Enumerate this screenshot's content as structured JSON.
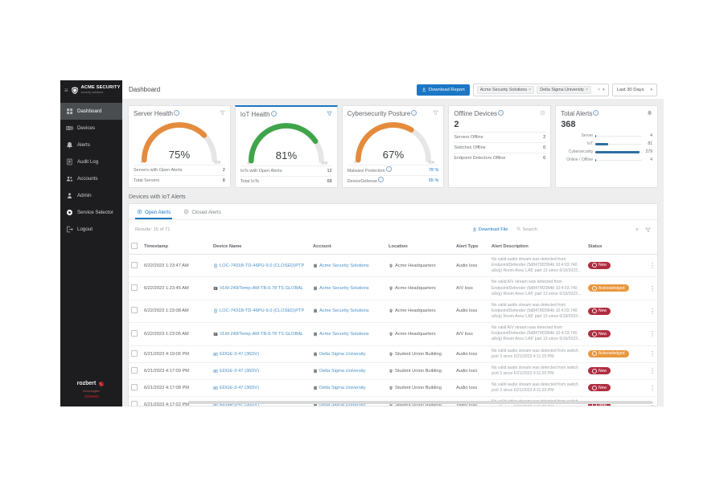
{
  "sidebar": {
    "logo": {
      "title": "ACME SECURITY",
      "subtitle": "security solutions"
    },
    "items": [
      {
        "label": "Dashboard",
        "icon": "dashboard",
        "active": true
      },
      {
        "label": "Devices",
        "icon": "devices",
        "active": false
      },
      {
        "label": "Alerts",
        "icon": "alerts",
        "active": false
      },
      {
        "label": "Audit Log",
        "icon": "audit-log",
        "active": false
      },
      {
        "label": "Accounts",
        "icon": "accounts",
        "active": false
      },
      {
        "label": "Admin",
        "icon": "admin",
        "active": false
      },
      {
        "label": "Service Selector",
        "icon": "service-selector",
        "active": false
      },
      {
        "label": "Logout",
        "icon": "logout",
        "active": false
      }
    ],
    "footer": {
      "brand": "rozbert",
      "sub": "technologies"
    }
  },
  "topbar": {
    "title": "Dashboard",
    "download_report_label": "Download Report",
    "account_filter": {
      "chips": [
        "Acme Security Solutions",
        "Delta Sigma University"
      ]
    },
    "date_range": "Last 30 Days"
  },
  "cards": {
    "server_health": {
      "title": "Server Health",
      "percent": 75,
      "min": "0",
      "max": "100",
      "color": "#e58b3c",
      "rows": [
        {
          "label": "Servers with Open Alerts",
          "value": "2"
        },
        {
          "label": "Total Servers",
          "value": "8"
        }
      ]
    },
    "iot_health": {
      "title": "IoT Health",
      "percent": 81,
      "min": "0",
      "max": "100",
      "color": "#3fa44a",
      "rows": [
        {
          "label": "IoTs with Open Alerts",
          "value": "12"
        },
        {
          "label": "Total IoTs",
          "value": "68"
        }
      ]
    },
    "cybersecurity_posture": {
      "title": "Cybersecurity Posture",
      "percent": 67,
      "min": "0",
      "max": "100",
      "color": "#e58b3c",
      "rows": [
        {
          "label": "Malware Protection",
          "value": "78 %",
          "link": true,
          "info": true
        },
        {
          "label": "DeviceDefense",
          "value": "65 %",
          "link": true,
          "info": true
        }
      ]
    },
    "offline_devices": {
      "title": "Offline Devices",
      "total": "2",
      "rows": [
        {
          "label": "Servers Offline",
          "value": "2"
        },
        {
          "label": "Switches Offline",
          "value": "0"
        },
        {
          "label": "Endpoint Detectors Offline",
          "value": "0"
        }
      ]
    },
    "total_alerts": {
      "title": "Total Alerts",
      "total": "368",
      "bar_color": "#2e6e9e",
      "scale_max": 279,
      "bars": [
        {
          "label": "Server",
          "value": 4
        },
        {
          "label": "IoT",
          "value": 81
        },
        {
          "label": "Cybersecurity",
          "value": 279
        },
        {
          "label": "Online / Offline",
          "value": 4
        }
      ]
    }
  },
  "section": {
    "title": "Devices with IoT Alerts"
  },
  "table": {
    "tabs": [
      {
        "label": "Open Alerts",
        "icon": "tab-open",
        "active": true
      },
      {
        "label": "Closed Alerts",
        "icon": "tab-closed",
        "active": false
      }
    ],
    "results": "Results: 15 of 71",
    "toolbar": {
      "download_label": "Download File",
      "search_label": "Search"
    },
    "columns": [
      "Timestamp",
      "Device Name",
      "Account",
      "Location",
      "Alert Type",
      "Alert Description",
      "Status"
    ],
    "status_colors": {
      "New": "#b02d40",
      "Acknowledged": "#e9973e"
    },
    "rows": [
      {
        "timestamp": "6/22/2023 1:23:47 AM",
        "device": "LOC-7431B-TD-46PU-9.0 (CLOSED)PTP",
        "device_icon": "camera",
        "account": "Acme Security Solutions",
        "location": "Acme Headquarters",
        "type": "Audio loss",
        "description": "No valid audio stream was detected from Endpoint/Defender (5d8479f2994b 10:4:03.740 a/b/g) Room Area 'LA5' part 13 since 6/19/2023 9:08:25 PM",
        "status": "New"
      },
      {
        "timestamp": "6/22/2023 1:23:45 AM",
        "device": "VLM-249/Temp-AM-TB-9.78 TS GLOBAL",
        "device_icon": "nvr",
        "account": "Acme Security Solutions",
        "location": "Acme Headquarters",
        "type": "A/V loss",
        "description": "No valid A/V stream was detected from Endpoint/Defender (5d8479f2994b 10:4:03.740 a/b/g) Room Area 'LA5' part 13 since 6/19/2023 9:08:25 PM",
        "status": "Acknowledged"
      },
      {
        "timestamp": "6/22/2023 1:23:08 AM",
        "device": "LOC-7431B-TD-46PU-9.0 (CLOSED)PTP",
        "device_icon": "camera",
        "account": "Acme Security Solutions",
        "location": "Acme Headquarters",
        "type": "Audio loss",
        "description": "No valid audio stream was detected from Endpoint/Defender (5d8479f2994b 10:4:03.740 a/b/g) Room Area 'LA5' part 13 since 6/19/2023 9:08:25 PM",
        "status": "New"
      },
      {
        "timestamp": "6/22/2023 1:23:06 AM",
        "device": "VLM-249/Temp-AM-TB-9.78 TS GLOBAL",
        "device_icon": "nvr",
        "account": "Acme Security Solutions",
        "location": "Acme Headquarters",
        "type": "A/V loss",
        "description": "No valid A/V stream was detected from Endpoint/Defender (5d8479f2994b 10:4:03.740 a/b/g) Room Area 'LA5' part 13 since 6/19/2023 9:08:25 PM",
        "status": "New"
      },
      {
        "timestamp": "6/21/2023 4:19:06 PM",
        "device": "EDGE-3-47 (36DV)",
        "device_icon": "encoder",
        "account": "Delta Sigma University",
        "location": "Student Union Building",
        "type": "Audio loss",
        "description": "No valid audio stream was detected from switch port 3 since 6/21/2023 4:11:20 PM",
        "status": "Acknowledged"
      },
      {
        "timestamp": "6/21/2023 4:17:09 PM",
        "device": "EDGE-3-47 (36DV)",
        "device_icon": "encoder",
        "account": "Delta Sigma University",
        "location": "Student Union Building",
        "type": "Audio loss",
        "description": "No valid audio stream was detected from switch port 3 since 6/21/2023 4:11:20 PM",
        "status": "New"
      },
      {
        "timestamp": "6/21/2023 4:17:08 PM",
        "device": "EDGE-3-47 (36DV)",
        "device_icon": "encoder",
        "account": "Delta Sigma University",
        "location": "Student Union Building",
        "type": "Audio loss",
        "description": "No valid audio stream was detected from switch port 3 since 6/21/2023 4:11:20 PM",
        "status": "New"
      },
      {
        "timestamp": "6/21/2023 4:17:02 PM",
        "device": "EDGE-3-47 (36DV)",
        "device_icon": "encoder",
        "account": "Delta Sigma University",
        "location": "Student Union Building",
        "type": "Video loss",
        "description": "No valid video stream was detected from switch port 3 since 6/21/2023 4:11:23 PM",
        "status": "New"
      }
    ]
  }
}
